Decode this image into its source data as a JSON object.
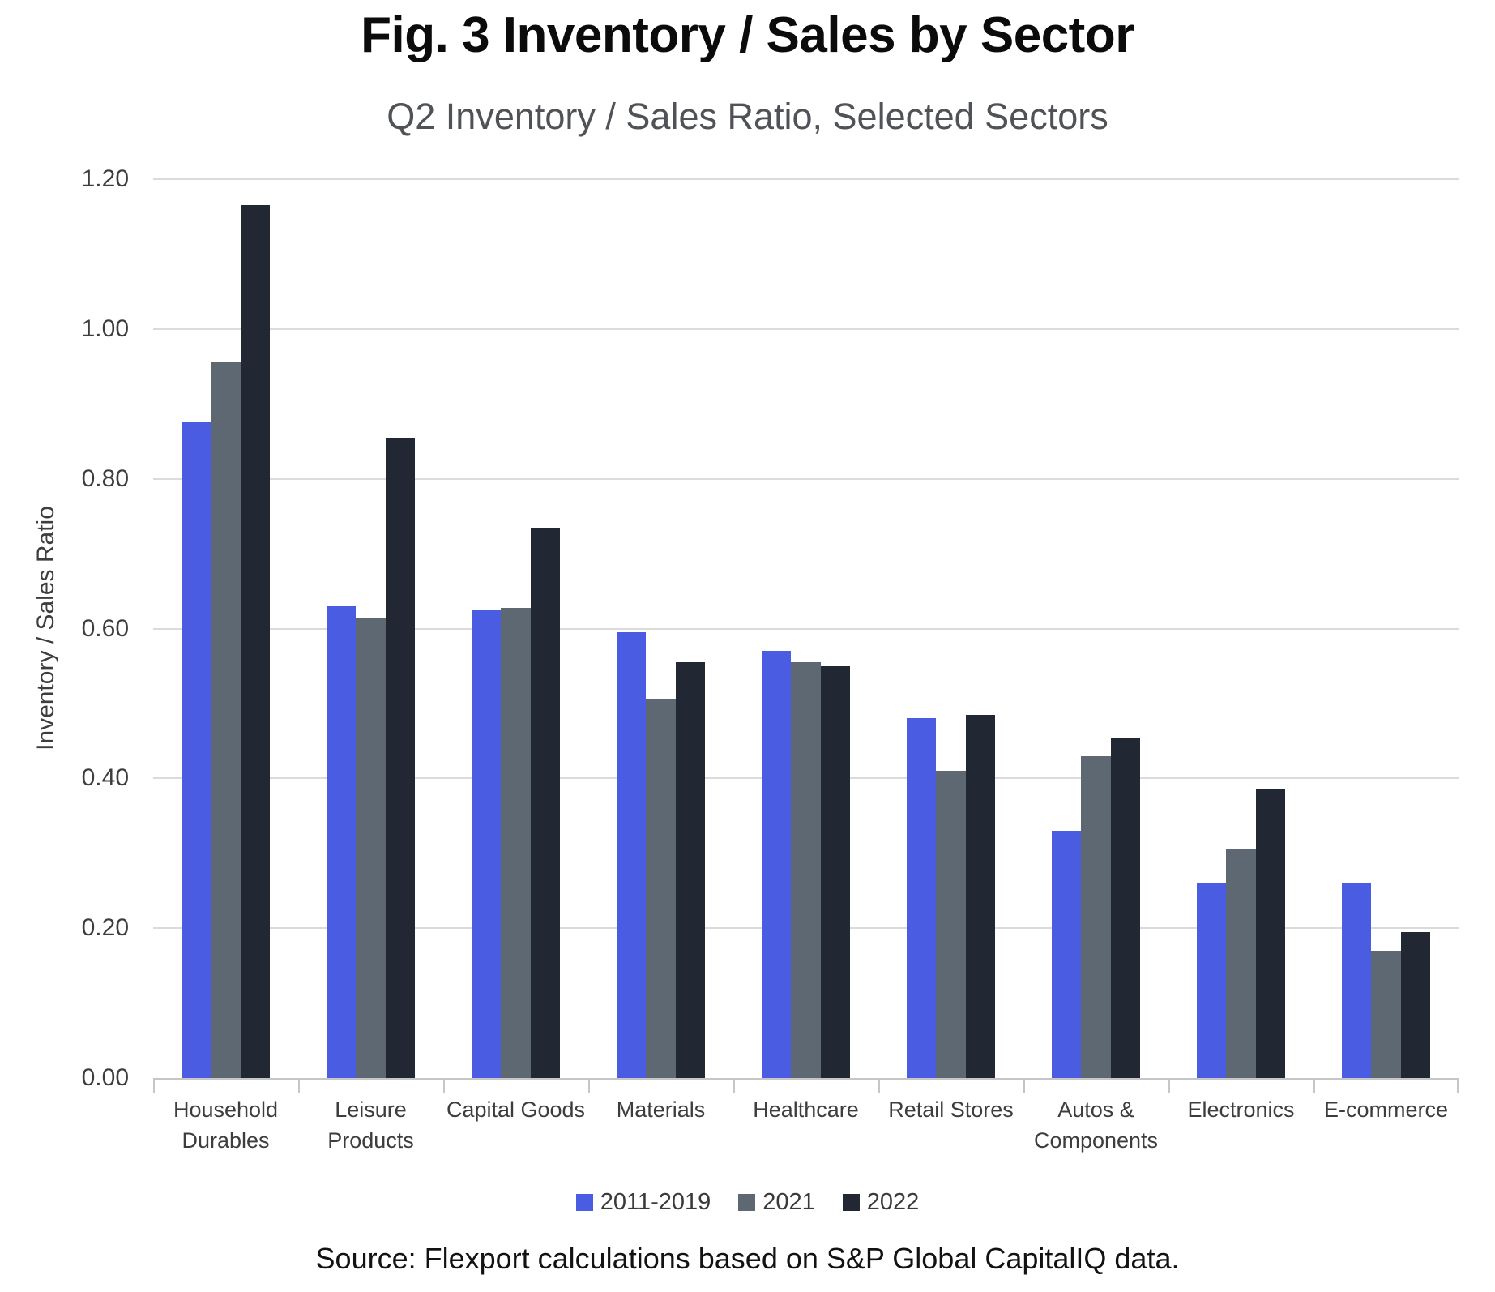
{
  "header": {
    "title": "Fig. 3 Inventory / Sales by Sector",
    "subtitle": "Q2 Inventory / Sales Ratio, Selected Sectors"
  },
  "chart_data": {
    "type": "bar",
    "title": "Fig. 3 Inventory / Sales by Sector",
    "subtitle": "Q2 Inventory / Sales Ratio, Selected Sectors",
    "categories": [
      "Household Durables",
      "Leisure Products",
      "Capital Goods",
      "Materials",
      "Healthcare",
      "Retail Stores",
      "Autos & Components",
      "Electronics",
      "E-commerce"
    ],
    "series": [
      {
        "name": "2011-2019",
        "color": "#4A5CE1",
        "values": [
          0.875,
          0.63,
          0.625,
          0.595,
          0.57,
          0.48,
          0.33,
          0.26,
          0.26
        ]
      },
      {
        "name": "2021",
        "color": "#5E6872",
        "values": [
          0.955,
          0.615,
          0.628,
          0.505,
          0.555,
          0.41,
          0.43,
          0.305,
          0.17
        ]
      },
      {
        "name": "2022",
        "color": "#212834",
        "values": [
          1.165,
          0.855,
          0.735,
          0.555,
          0.55,
          0.485,
          0.455,
          0.385,
          0.195
        ]
      }
    ],
    "xlabel": "",
    "ylabel": "Inventory / Sales Ratio",
    "ylim": [
      0,
      1.2
    ],
    "ytick_step": 0.2,
    "ytick_labels": [
      "0.00",
      "0.20",
      "0.40",
      "0.60",
      "0.80",
      "1.00",
      "1.20"
    ],
    "grid": "horizontal",
    "legend_position": "bottom"
  },
  "footer": {
    "source": "Source: Flexport calculations based on S&P Global CapitalIQ data."
  },
  "colors": {
    "gridline": "#DBDBDB",
    "axis": "#C6C6C6",
    "title_text": "#0B0B0B",
    "subtitle_text": "#4F5256",
    "tick_text": "#3D3D3D",
    "source_text": "#121212"
  }
}
